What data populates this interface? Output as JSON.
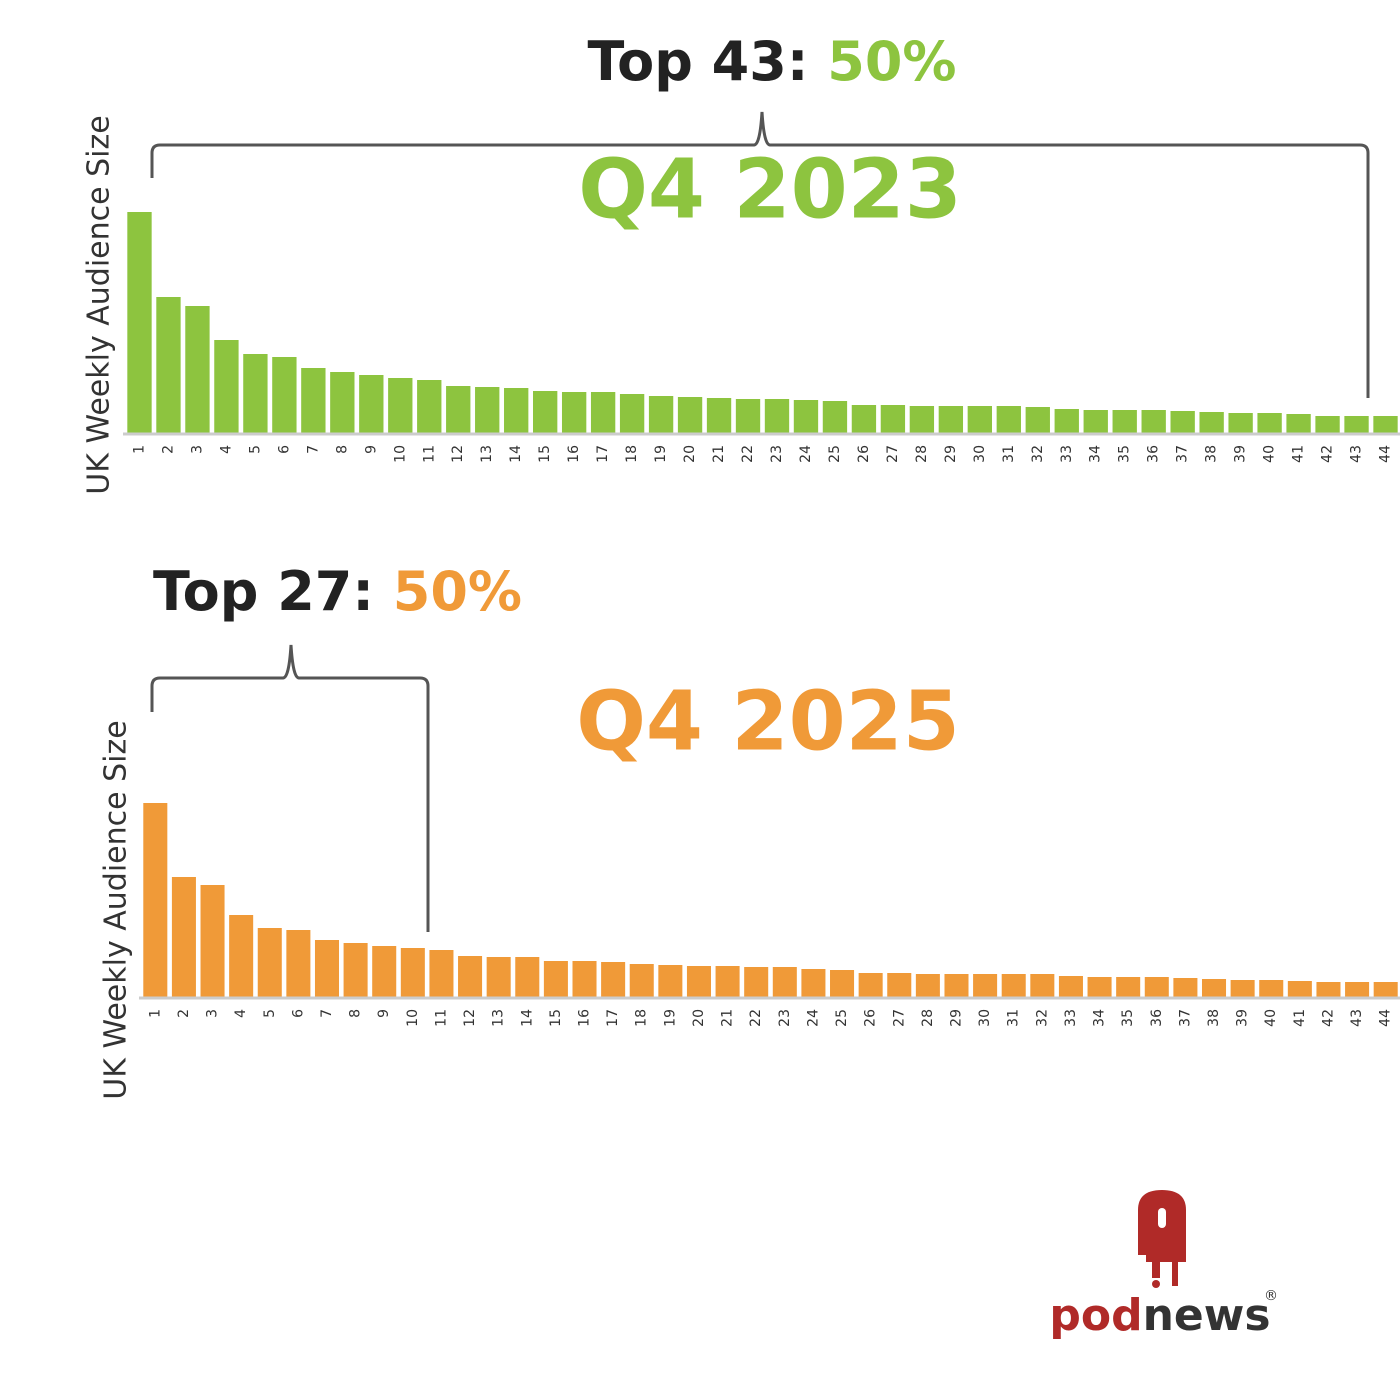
{
  "chart_data": [
    {
      "type": "bar",
      "title": "Q4 2023",
      "annotation": "Top 43:",
      "annotation_value": "50%",
      "y_label": "UK Weekly Audience Size",
      "color": "#8dc43f",
      "categories": [
        "1",
        "2",
        "3",
        "4",
        "5",
        "6",
        "7",
        "8",
        "9",
        "10",
        "11",
        "12",
        "13",
        "14",
        "15",
        "16",
        "17",
        "18",
        "19",
        "20",
        "21",
        "22",
        "23",
        "24",
        "25",
        "26",
        "27",
        "28",
        "29",
        "30",
        "31",
        "32",
        "33",
        "34",
        "35",
        "36",
        "37",
        "38",
        "39",
        "40",
        "41",
        "42",
        "43",
        "44"
      ],
      "values": [
        221,
        136,
        127,
        93,
        79,
        76,
        65,
        61,
        58,
        55,
        53,
        47,
        46,
        45,
        42,
        41,
        41,
        39,
        37,
        36,
        35,
        34,
        34,
        33,
        32,
        28,
        28,
        27,
        27,
        27,
        27,
        26,
        24,
        23,
        23,
        23,
        22,
        21,
        20,
        20,
        19,
        17,
        17,
        17
      ],
      "ylim": [
        0,
        230
      ]
    },
    {
      "type": "bar",
      "title": "Q4 2025",
      "annotation": "Top 27:",
      "annotation_value": "50%",
      "y_label": "UK Weekly Audience Size",
      "color": "#f09a38",
      "categories": [
        "1",
        "2",
        "3",
        "4",
        "5",
        "6",
        "7",
        "8",
        "9",
        "10",
        "11",
        "12",
        "13",
        "14",
        "15",
        "16",
        "17",
        "18",
        "19",
        "20",
        "21",
        "22",
        "23",
        "24",
        "25",
        "26",
        "27",
        "28",
        "29",
        "30",
        "31",
        "32",
        "33",
        "34",
        "35",
        "36",
        "37",
        "38",
        "39",
        "40",
        "41",
        "42",
        "43",
        "44"
      ],
      "values": [
        194,
        120,
        112,
        82,
        69,
        67,
        57,
        54,
        51,
        49,
        47,
        41,
        40,
        40,
        36,
        36,
        35,
        33,
        32,
        31,
        31,
        30,
        30,
        28,
        27,
        24,
        24,
        23,
        23,
        23,
        23,
        23,
        21,
        20,
        20,
        20,
        19,
        18,
        17,
        17,
        16,
        15,
        15,
        15
      ],
      "ylim": [
        0,
        230
      ]
    }
  ],
  "brand": {
    "part1": "pod",
    "part2": "news",
    "mark": "®"
  }
}
